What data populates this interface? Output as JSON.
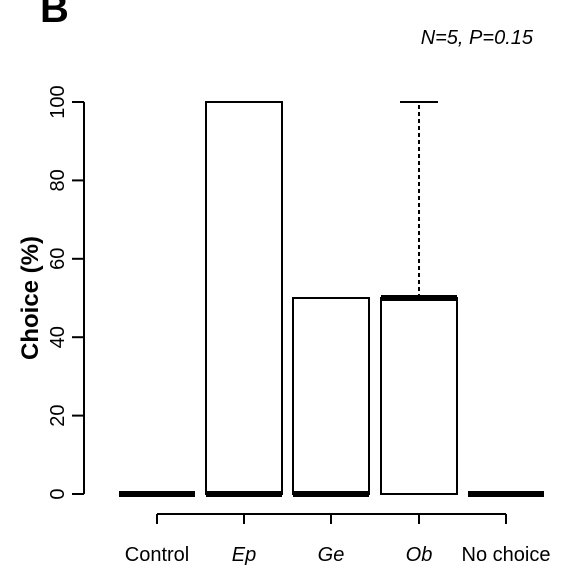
{
  "panel_letter": "B",
  "annotation": "N=5, P=0.15",
  "chart_data": {
    "type": "box",
    "ylabel": "Choice (%)",
    "xlabel": "",
    "ylim": [
      0,
      100
    ],
    "yticks": [
      0,
      20,
      40,
      60,
      80,
      100
    ],
    "categories": [
      "Control",
      "Ep",
      "Ge",
      "Ob",
      "No choice"
    ],
    "italic_categories": [
      "Ep",
      "Ge",
      "Ob"
    ],
    "boxes": [
      {
        "category": "Control",
        "min": 0,
        "q1": 0,
        "median": 0,
        "q3": 0,
        "max": 0
      },
      {
        "category": "Ep",
        "min": 0,
        "q1": 0,
        "median": 0,
        "q3": 100,
        "max": 100
      },
      {
        "category": "Ge",
        "min": 0,
        "q1": 0,
        "median": 0,
        "q3": 50,
        "max": 50
      },
      {
        "category": "Ob",
        "min": 0,
        "q1": 0,
        "median": 50,
        "q3": 50,
        "max": 100
      },
      {
        "category": "No choice",
        "min": 0,
        "q1": 0,
        "median": 0,
        "q3": 0,
        "max": 0
      }
    ]
  }
}
